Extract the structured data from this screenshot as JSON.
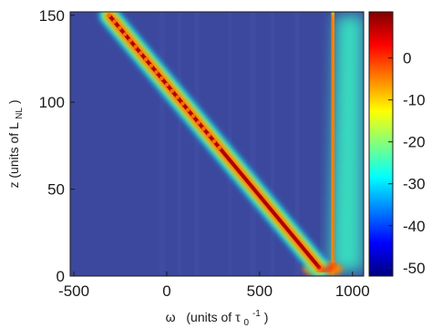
{
  "chart_data": {
    "type": "heatmap",
    "title": "",
    "xlabel": "ω  (units of τ₀⁻¹)",
    "ylabel": "z (units of L_NL)",
    "xlim": [
      -520,
      1060
    ],
    "ylim": [
      0,
      152
    ],
    "x_ticks": [
      -500,
      0,
      500,
      1000
    ],
    "y_ticks": [
      0,
      50,
      100,
      150
    ],
    "colorbar": {
      "label": "",
      "range": [
        -52,
        11
      ],
      "ticks": [
        0,
        -10,
        -20,
        -30,
        -40,
        -50
      ],
      "colormap": "jet"
    },
    "features": [
      {
        "name": "soliton trajectory",
        "points": [
          [
            -310,
            150
          ],
          [
            820,
            5
          ]
        ],
        "peak_level": 8
      },
      {
        "name": "resonant radiation",
        "points": [
          [
            900,
            5
          ],
          [
            890,
            150
          ]
        ],
        "peak_level": 0
      },
      {
        "name": "radiation spread",
        "points": [
          [
            930,
            5
          ],
          [
            980,
            150
          ]
        ],
        "peak_level": -25
      }
    ],
    "background_level": -50,
    "grid": false
  },
  "xlabel_main": "ω",
  "xlabel_units_prefix": "(units of τ",
  "xlabel_units_sub": "0",
  "xlabel_units_sup": "-1",
  "xlabel_units_suffix": ")",
  "ylabel_main": "z (units of L",
  "ylabel_sub": "NL",
  "ylabel_suffix": ")"
}
